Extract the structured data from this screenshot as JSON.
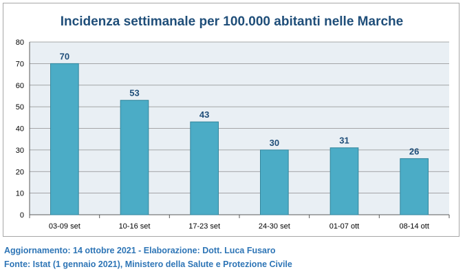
{
  "chart_data": {
    "type": "bar",
    "title": "Incidenza settimanale per 100.000 abitanti nelle Marche",
    "categories": [
      "03-09 set",
      "10-16 set",
      "17-23 set",
      "24-30 set",
      "01-07 ott",
      "08-14 ott"
    ],
    "values": [
      70,
      53,
      43,
      30,
      31,
      26
    ],
    "ylim": [
      0,
      80
    ],
    "yticks": [
      0,
      10,
      20,
      30,
      40,
      50,
      60,
      70,
      80
    ],
    "grid": true,
    "colors": {
      "bar": "#4bacc6",
      "bar_border": "#31859c",
      "plot_background": "#e9eff4",
      "grid": "#8c8c8c",
      "title": "#1f4e79",
      "data_label": "#1f4e79"
    }
  },
  "footer": {
    "update": "Aggiornamento: 14 ottobre 2021 - Elaborazione: Dott. Luca Fusaro",
    "source": "Fonte: Istat (1 gennaio 2021), Ministero della Salute e Protezione Civile"
  }
}
